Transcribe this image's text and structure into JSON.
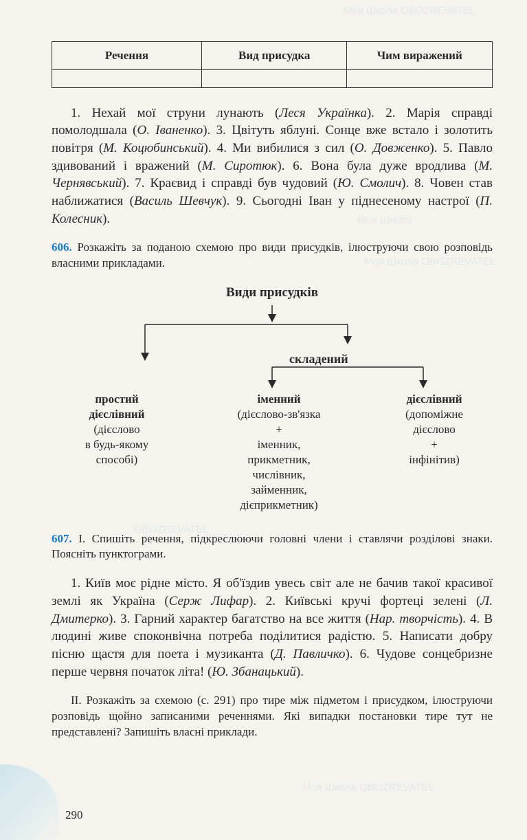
{
  "table": {
    "headers": [
      "Речення",
      "Вид присудка",
      "Чим виражений"
    ]
  },
  "paragraph1": {
    "segments": [
      {
        "t": "1. Нехай мої струни лунають (",
        "i": false
      },
      {
        "t": "Леся Українка",
        "i": true
      },
      {
        "t": "). 2. Марія справді помолодшала (",
        "i": false
      },
      {
        "t": "О. Іваненко",
        "i": true
      },
      {
        "t": "). 3. Цвітуть яблуні. Сонце вже встало і золотить повітря (",
        "i": false
      },
      {
        "t": "М. Коцюбинський",
        "i": true
      },
      {
        "t": "). 4. Ми вибилися з сил (",
        "i": false
      },
      {
        "t": "О. Довженко",
        "i": true
      },
      {
        "t": "). 5. Павло здивований і вражений (",
        "i": false
      },
      {
        "t": "М. Сиротюк",
        "i": true
      },
      {
        "t": "). 6. Вона була дуже вродлива (",
        "i": false
      },
      {
        "t": "М. Чернявський",
        "i": true
      },
      {
        "t": "). 7. Краєвид і справді був чудовий (",
        "i": false
      },
      {
        "t": "Ю. Смолич",
        "i": true
      },
      {
        "t": "). 8. Човен став наближатися (",
        "i": false
      },
      {
        "t": "Василь Шевчук",
        "i": true
      },
      {
        "t": "). 9. Сьогодні Іван у піднесеному настрої (",
        "i": false
      },
      {
        "t": "П. Колесник",
        "i": true
      },
      {
        "t": ").",
        "i": false
      }
    ]
  },
  "task606": {
    "num": "606.",
    "text": "Розкажіть за поданою схемою про види присудків, ілюструючи свою розповідь власними прикладами."
  },
  "diagram": {
    "title": "Види присудків",
    "left": {
      "bold1": "простий",
      "bold2": "дієслівний",
      "lines": [
        "(дієслово",
        "в будь-якому",
        "способі)"
      ]
    },
    "right_head": "складений",
    "mid": {
      "bold": "іменний",
      "lines": [
        "(дієслово-зв'язка",
        "+",
        "іменник,",
        "прикметник,",
        "числівник,",
        "займенник,",
        "дієприкметник)"
      ]
    },
    "far": {
      "bold": "дієслівний",
      "lines": [
        "(допоміжне",
        "дієслово",
        "+",
        "інфінітив)"
      ]
    },
    "arrow_color": "#2a2a2a"
  },
  "task607": {
    "num": "607.",
    "intro": "I. Спишіть речення, підкреслюючи головні члени і ставлячи розділові знаки. Поясніть пунктограми.",
    "body_segments": [
      {
        "t": "1. Київ моє рідне місто. Я об'їздив увесь світ але не бачив такої красивої землі як Україна (",
        "i": false
      },
      {
        "t": "Серж Лифар",
        "i": true
      },
      {
        "t": "). 2. Київські кручі фортеці зелені (",
        "i": false
      },
      {
        "t": "Л. Дмитерко",
        "i": true
      },
      {
        "t": "). 3. Гарний характер багатство на все життя (",
        "i": false
      },
      {
        "t": "Нар. творчість",
        "i": true
      },
      {
        "t": "). 4. В людині живе споконвічна потреба поділитися радістю. 5. Написати добру пісню щастя для поета і музиканта (",
        "i": false
      },
      {
        "t": "Д. Павличко",
        "i": true
      },
      {
        "t": "). 6. Чудове сонцебризне перше червня початок літа! (",
        "i": false
      },
      {
        "t": "Ю. Збанацький",
        "i": true
      },
      {
        "t": ").",
        "i": false
      }
    ],
    "part2": "II. Розкажіть за схемою (с. 291) про тире між підметом і присудком, ілюструючи розповідь щойно записаними реченнями. Які випадки постановки тире тут не представлені? Запишіть власні приклади."
  },
  "page_number": "290",
  "watermarks": {
    "text1": "Моя Школа",
    "text2": "OBOZREVATEL"
  },
  "colors": {
    "background": "#f5f3ee",
    "text": "#2a2a2a",
    "task_num": "#1a7acc",
    "watermark": "#c5d3db",
    "corner_grad_a": "#b8dce6",
    "corner_grad_b": "#d5e8ee"
  }
}
